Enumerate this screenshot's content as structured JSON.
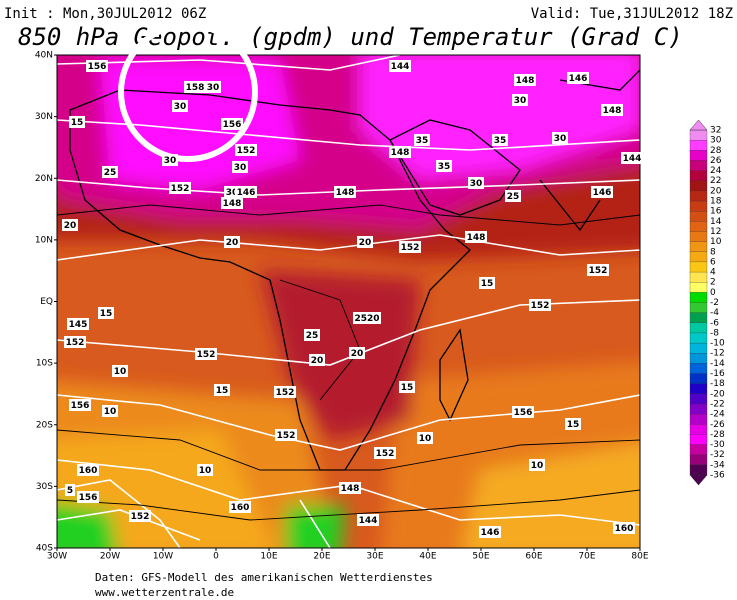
{
  "header": {
    "init": "Init : Mon,30JUL2012 06Z",
    "valid": "Valid: Tue,31JUL2012 18Z",
    "title": "850 hPa Geopot. (gpdm) und Temperatur (Grad C)"
  },
  "footer": {
    "source": "Daten: GFS-Modell des amerikanischen Wetterdienstes",
    "url": "www.wetterzentrale.de"
  },
  "map": {
    "lat_labels": [
      "40N",
      "30N",
      "20N",
      "10N",
      "EQ",
      "10S",
      "20S",
      "30S",
      "40S"
    ],
    "lon_labels": [
      "30W",
      "20W",
      "10W",
      "0",
      "10E",
      "20E",
      "30E",
      "40E",
      "50E",
      "60E",
      "70E",
      "80E"
    ],
    "contour_labels": [
      "156",
      "158",
      "30",
      "30",
      "156",
      "15",
      "152",
      "30",
      "25",
      "152",
      "30",
      "30",
      "146",
      "148",
      "148",
      "148",
      "35",
      "35",
      "30",
      "25",
      "146",
      "144",
      "148",
      "152",
      "20",
      "20",
      "20",
      "152",
      "15",
      "152",
      "15",
      "152",
      "145",
      "152",
      "10",
      "15",
      "10",
      "156",
      "152",
      "152",
      "10",
      "10",
      "156",
      "15",
      "152",
      "160",
      "156",
      "152",
      "10",
      "160",
      "148",
      "144",
      "146",
      "160",
      "5",
      "25",
      "2520",
      "20",
      "15",
      "20",
      "144",
      "148",
      "146",
      "148",
      "30",
      "30",
      "35"
    ]
  },
  "colorbar": {
    "labels": [
      32,
      30,
      28,
      26,
      24,
      22,
      20,
      18,
      16,
      14,
      12,
      10,
      8,
      6,
      4,
      2,
      0,
      -2,
      -4,
      -6,
      -8,
      -10,
      -12,
      -14,
      -16,
      -18,
      -20,
      -22,
      -24,
      -26,
      -28,
      -30,
      -32,
      -34,
      -36
    ],
    "colors": [
      "#f08cf0",
      "#ff3cff",
      "#e600c8",
      "#c8007a",
      "#b4003c",
      "#a01414",
      "#b42814",
      "#c83c14",
      "#d25014",
      "#e06414",
      "#e87814",
      "#f09614",
      "#f5aa14",
      "#fac814",
      "#ffe650",
      "#ffff64",
      "#00dc00",
      "#32c832",
      "#00a050",
      "#00c8a0",
      "#00c8c8",
      "#00b4dc",
      "#0096dc",
      "#0064dc",
      "#0032c8",
      "#1e00c8",
      "#5000c8",
      "#8200c8",
      "#b400c8",
      "#e600e6",
      "#ff00ff",
      "#c800a0",
      "#960078",
      "#500050"
    ]
  }
}
